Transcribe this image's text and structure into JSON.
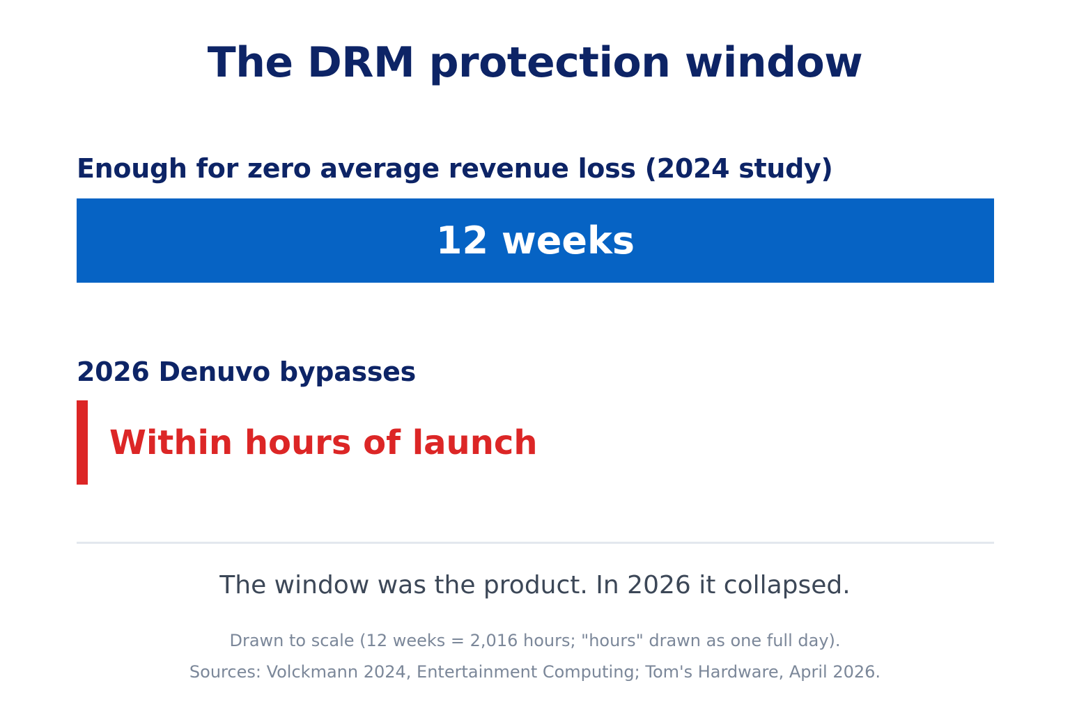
{
  "title": "The DRM protection window",
  "colors": {
    "title": "#0d2466",
    "bar_weeks": "#0663c4",
    "bar_hours": "#dc2626",
    "bar_text": "#ffffff",
    "tagline": "#3c4757",
    "footnote": "#7b8799",
    "divider": "#e3e8ee"
  },
  "chart_data": {
    "type": "bar",
    "orientation": "horizontal",
    "scale_note": "drawn to scale: 12 weeks = 2016 hours; hours drawn as one full day (24 hours)",
    "categories": [
      "Enough for zero average revenue loss (2024 study)",
      "2026 Denuvo bypasses"
    ],
    "values_hours": [
      2016,
      24
    ],
    "value_labels": [
      "12 weeks",
      "Within hours of launch"
    ],
    "xlim_hours": [
      0,
      2016
    ]
  },
  "tagline": "The window was the product. In 2026 it collapsed.",
  "footnotes": [
    "Drawn to scale (12 weeks = 2,016 hours; \"hours\" drawn as one full day).",
    "Sources: Volckmann 2024, Entertainment Computing; Tom's Hardware, April 2026."
  ]
}
